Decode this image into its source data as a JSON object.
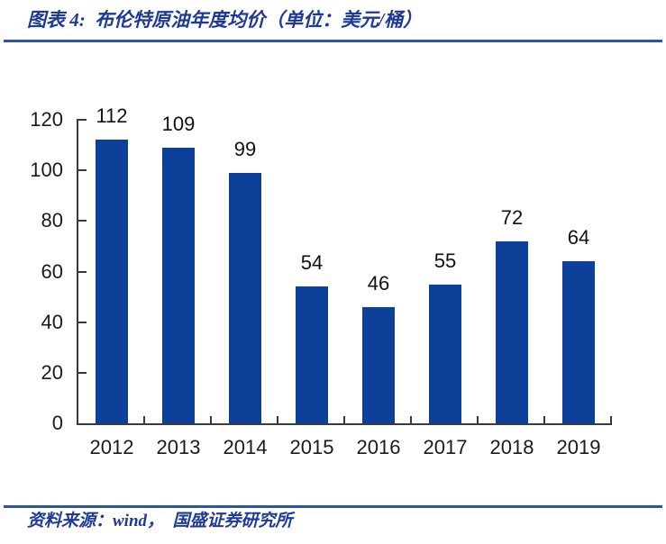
{
  "header": {
    "title": "图表 4:  布伦特原油年度均价（单位：美元/桶）"
  },
  "footer": {
    "source": "资料来源：wind，  国盛证券研究所"
  },
  "colors": {
    "bar": "#0D4199",
    "rule_blue": "#2A56A5",
    "title_blue": "#1E3A96",
    "axis": "#3A3A3A",
    "label_text": "#1A1A1A"
  },
  "chart_data": {
    "type": "bar",
    "title": "布伦特原油年度均价",
    "unit": "美元/桶",
    "categories": [
      "2012",
      "2013",
      "2014",
      "2015",
      "2016",
      "2017",
      "2018",
      "2019"
    ],
    "values": [
      112,
      109,
      99,
      54,
      46,
      55,
      72,
      64
    ],
    "xlabel": "",
    "ylabel": "",
    "ylim": [
      0,
      120
    ],
    "yticks": [
      0,
      20,
      40,
      60,
      80,
      100,
      120
    ],
    "grid": false,
    "legend": "none",
    "bar_color": "#0D4199",
    "data_labels": true
  }
}
